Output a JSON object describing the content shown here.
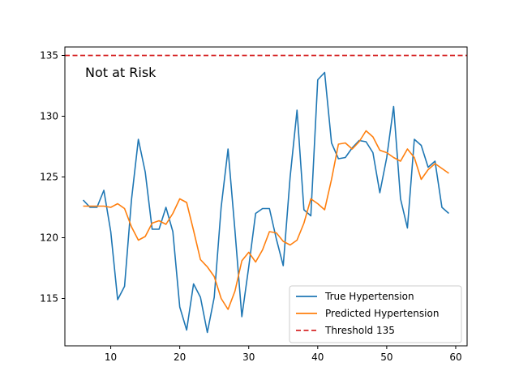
{
  "chart_data": {
    "type": "line",
    "title": "",
    "xlabel": "",
    "ylabel": "",
    "xlim": [
      3.35,
      61.65
    ],
    "ylim": [
      111.1,
      135.7
    ],
    "xticks": [
      10,
      20,
      30,
      40,
      50,
      60
    ],
    "yticks": [
      115,
      120,
      125,
      130,
      135
    ],
    "grid": false,
    "legend_position": "lower right",
    "annotation": "Not at Risk",
    "x": [
      6,
      7,
      8,
      9,
      10,
      11,
      12,
      13,
      14,
      15,
      16,
      17,
      18,
      19,
      20,
      21,
      22,
      23,
      24,
      25,
      26,
      27,
      28,
      29,
      30,
      31,
      32,
      33,
      34,
      35,
      36,
      37,
      38,
      39,
      40,
      41,
      42,
      43,
      44,
      45,
      46,
      47,
      48,
      49,
      50,
      51,
      52,
      53,
      54,
      55,
      56,
      57,
      58,
      59
    ],
    "series": [
      {
        "name": "True Hypertension",
        "color": "#1f77b4",
        "style": "solid",
        "values": [
          123.1,
          122.5,
          122.5,
          123.9,
          120.5,
          114.9,
          116.0,
          123.1,
          128.1,
          125.4,
          120.7,
          120.7,
          122.5,
          120.5,
          114.3,
          112.4,
          116.2,
          115.1,
          112.2,
          115.1,
          122.5,
          127.3,
          120.6,
          113.5,
          117.6,
          122.0,
          122.4,
          122.4,
          119.9,
          117.7,
          125.0,
          130.5,
          122.3,
          121.8,
          133.0,
          133.6,
          127.8,
          126.5,
          126.6,
          127.4,
          128.0,
          127.9,
          127.0,
          123.7,
          126.6,
          130.8,
          123.2,
          120.8,
          128.1,
          127.6,
          125.8,
          126.3,
          122.5,
          122.0
        ]
      },
      {
        "name": "Predicted Hypertension",
        "color": "#ff7f0e",
        "style": "solid",
        "values": [
          122.6,
          122.6,
          122.6,
          122.6,
          122.5,
          122.8,
          122.4,
          120.9,
          119.8,
          120.1,
          121.2,
          121.4,
          121.1,
          122.0,
          123.2,
          122.9,
          120.6,
          118.2,
          117.6,
          116.8,
          115.0,
          114.1,
          115.6,
          118.1,
          118.8,
          118.0,
          119.0,
          120.5,
          120.4,
          119.7,
          119.4,
          119.8,
          121.2,
          123.2,
          122.8,
          122.3,
          124.8,
          127.7,
          127.8,
          127.3,
          127.9,
          128.8,
          128.3,
          127.2,
          127.0,
          126.6,
          126.3,
          127.3,
          126.6,
          124.8,
          125.6,
          126.1,
          125.7,
          125.3
        ]
      },
      {
        "name": "Threshold 135",
        "color": "#d62728",
        "style": "dashed",
        "constant": 135
      }
    ]
  }
}
